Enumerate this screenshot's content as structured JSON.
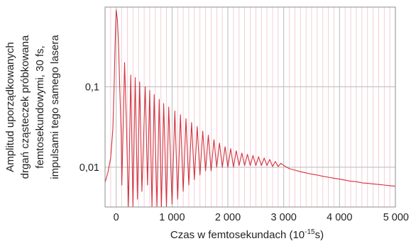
{
  "chart_data": {
    "type": "line",
    "title": "",
    "xlabel": "Czas w femtosekundach (10",
    "xlabel_sup": "-15",
    "xlabel_suffix": "s)",
    "ylabel_lines": [
      "Amplitud uporządkowanych",
      "drgań cząsteczek próbkowana",
      "femtosekundowymi, 30 fs,",
      "impulsami tego samego lasera"
    ],
    "x_scale": "linear",
    "y_scale": "log",
    "xlim": [
      -200,
      5000
    ],
    "ylim": [
      0.0032,
      0.98
    ],
    "x_ticks": [
      0,
      1000,
      2000,
      3000,
      4000,
      5000
    ],
    "x_tick_labels": [
      "0",
      "1 000",
      "2 000",
      "3 000",
      "4 000",
      "5 000"
    ],
    "y_ticks": [
      0.1,
      0.01
    ],
    "y_tick_labels": [
      "0,1",
      "0,01"
    ],
    "grid": true,
    "colors": {
      "line": "#d2323f",
      "major_grid": "#b9b9b9",
      "minor_grid": "#f0c3cb",
      "frame": "#8c8c8c"
    },
    "series": [
      {
        "x": [
          -200,
          -150,
          -100,
          -60,
          -40,
          -20,
          0,
          20,
          40,
          60,
          90,
          100,
          130,
          150,
          180,
          220,
          260,
          300,
          340,
          380,
          420,
          460,
          520,
          560,
          600,
          640,
          680,
          730,
          770,
          810,
          850,
          900,
          940,
          1000,
          1050,
          1100,
          1150,
          1200,
          1250,
          1300,
          1350,
          1400,
          1450,
          1500,
          1550,
          1600,
          1650,
          1700,
          1750,
          1800,
          1850,
          1900,
          1950,
          2000,
          2050,
          2100,
          2150,
          2200,
          2250,
          2300,
          2350,
          2400,
          2450,
          2500,
          2550,
          2600,
          2650,
          2700,
          2750,
          2800,
          2850,
          2900,
          2950,
          3000,
          3100,
          3200,
          3300,
          3400,
          3500,
          3600,
          3700,
          3800,
          3900,
          4000,
          4100,
          4200,
          4300,
          4400,
          4500,
          4600,
          4700,
          4800,
          4900,
          5000
        ],
        "values": [
          0.0065,
          0.0085,
          0.013,
          0.03,
          0.09,
          0.35,
          0.9,
          0.7,
          0.35,
          0.12,
          0.025,
          0.006,
          0.05,
          0.2,
          0.04,
          0.0032,
          0.14,
          0.0032,
          0.13,
          0.004,
          0.115,
          0.005,
          0.1,
          0.006,
          0.09,
          0.0032,
          0.08,
          0.0032,
          0.07,
          0.0032,
          0.062,
          0.0032,
          0.056,
          0.0035,
          0.05,
          0.004,
          0.045,
          0.005,
          0.04,
          0.006,
          0.036,
          0.007,
          0.032,
          0.008,
          0.028,
          0.009,
          0.025,
          0.009,
          0.022,
          0.01,
          0.02,
          0.01,
          0.018,
          0.01,
          0.017,
          0.01,
          0.016,
          0.0105,
          0.015,
          0.0105,
          0.0145,
          0.0105,
          0.014,
          0.0105,
          0.0135,
          0.0105,
          0.013,
          0.0105,
          0.0125,
          0.0102,
          0.0118,
          0.0102,
          0.0112,
          0.0105,
          0.0096,
          0.0092,
          0.0088,
          0.0085,
          0.0082,
          0.008,
          0.0077,
          0.0075,
          0.0073,
          0.0071,
          0.0069,
          0.0067,
          0.0066,
          0.0064,
          0.0063,
          0.0062,
          0.0061,
          0.006,
          0.0059,
          0.0058
        ]
      }
    ]
  }
}
